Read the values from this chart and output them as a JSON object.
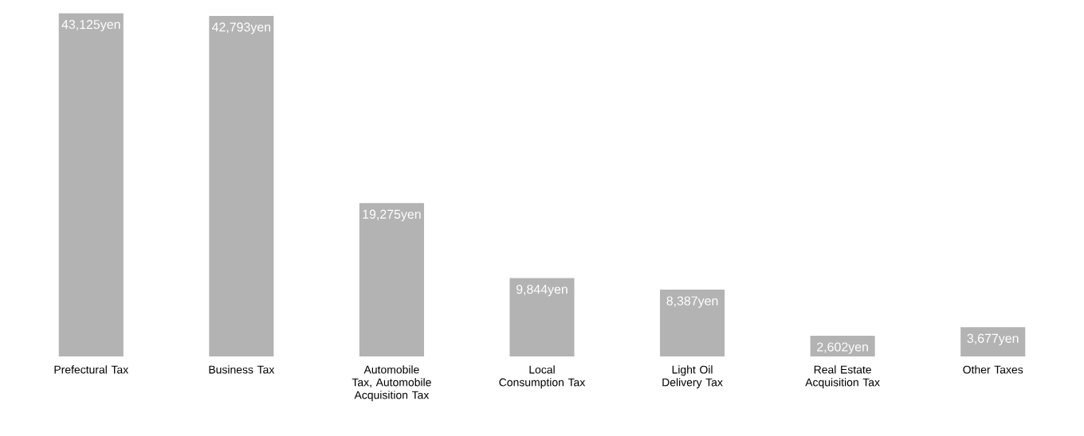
{
  "chart_data": {
    "type": "bar",
    "categories": [
      "Prefectural Tax",
      "Business Tax",
      "Automobile Tax, Automobile Acquisition Tax",
      "Local Consumption Tax",
      "Light Oil Delivery Tax",
      "Real Estate Acquisition Tax",
      "Other Taxes"
    ],
    "values": [
      43125,
      42793,
      19275,
      9844,
      8387,
      2602,
      3677
    ],
    "value_labels": [
      "43,125yen",
      "42,793yen",
      "19,275yen",
      "9,844yen",
      "8,387yen",
      "2,602yen",
      "3,677yen"
    ],
    "color": "#b3b3b3"
  }
}
